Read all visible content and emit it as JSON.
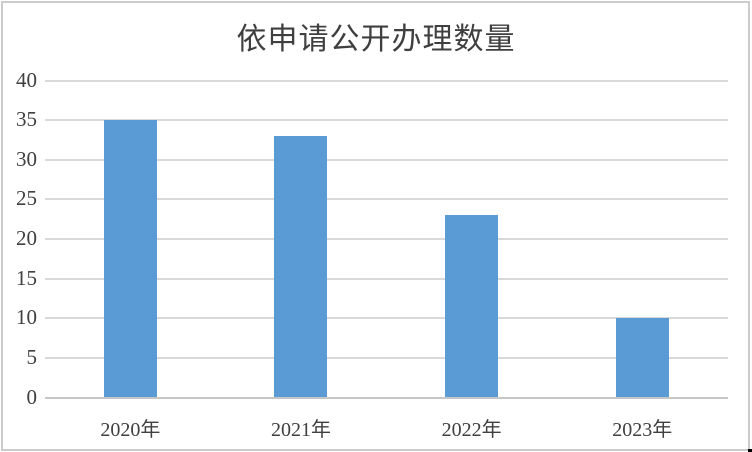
{
  "chart_data": {
    "type": "bar",
    "title": "依申请公开办理数量",
    "categories": [
      "2020年",
      "2021年",
      "2022年",
      "2023年"
    ],
    "values": [
      35,
      33,
      23,
      10
    ],
    "xlabel": "",
    "ylabel": "",
    "ylim": [
      0,
      40
    ],
    "yticks": [
      0,
      5,
      10,
      15,
      20,
      25,
      30,
      35,
      40
    ],
    "grid": "horizontal",
    "legend_position": "none",
    "bar_color": "#5B9BD5"
  },
  "colors": {
    "bar": "#5B9BD5",
    "gridline": "#D9D9D9",
    "axis_line": "#C6C6C6",
    "text": "#404040",
    "title_text": "#3F3F3F",
    "chart_border": "#CCCCCC",
    "background": "#FFFFFF"
  }
}
